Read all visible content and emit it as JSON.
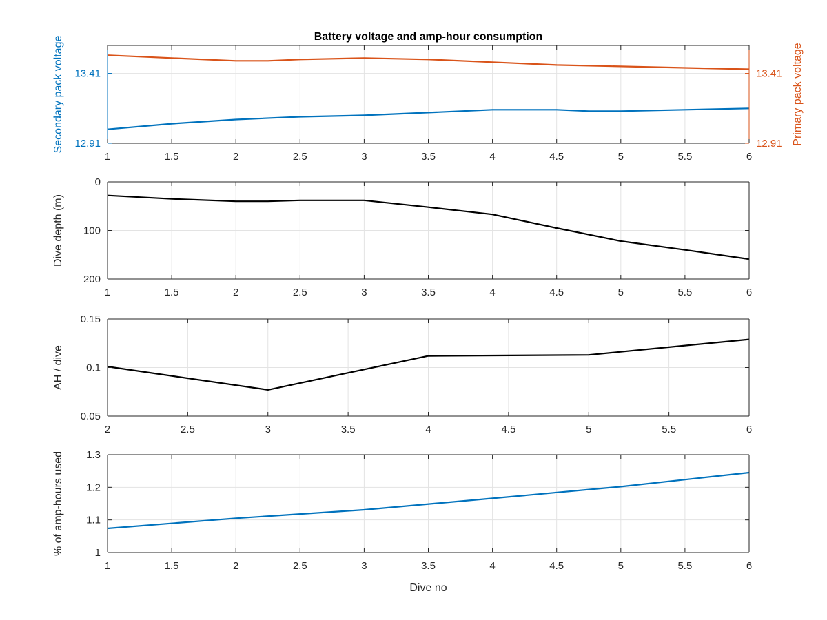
{
  "chart_data": [
    {
      "type": "line",
      "title": "Battery voltage and amp-hour consumption",
      "xlabel": "",
      "xlim": [
        1,
        6
      ],
      "xticks": [
        1,
        1.5,
        2,
        2.5,
        3,
        3.5,
        4,
        4.5,
        5,
        5.5,
        6
      ],
      "xtick_labels": [
        "1",
        "1.5",
        "2",
        "2.5",
        "3",
        "3.5",
        "4",
        "4.5",
        "5",
        "5.5",
        "6"
      ],
      "grid": true,
      "left_axis": {
        "label": "Secondary pack voltage",
        "color": "#0072bd",
        "ylim": [
          12.91,
          13.61
        ],
        "ticks": [
          12.91,
          13.41
        ],
        "tick_labels": [
          "12.91",
          "13.41"
        ]
      },
      "right_axis": {
        "label": "Primary pack voltage",
        "color": "#d95319",
        "ylim": [
          12.91,
          13.61
        ],
        "ticks": [
          12.91,
          13.41
        ],
        "tick_labels": [
          "12.91",
          "13.41"
        ]
      },
      "series": [
        {
          "axis": "left",
          "color": "#0072bd",
          "x": [
            1,
            1.5,
            2,
            2.5,
            3,
            3.5,
            4,
            4.5,
            4.75,
            5,
            5.5,
            6
          ],
          "y": [
            13.01,
            13.05,
            13.08,
            13.1,
            13.11,
            13.13,
            13.15,
            13.15,
            13.14,
            13.14,
            13.15,
            13.16
          ]
        },
        {
          "axis": "right",
          "color": "#d95319",
          "x": [
            1,
            1.5,
            2,
            2.25,
            2.5,
            3,
            3.5,
            4,
            4.5,
            5,
            5.5,
            6
          ],
          "y": [
            13.54,
            13.52,
            13.5,
            13.5,
            13.51,
            13.52,
            13.51,
            13.49,
            13.47,
            13.46,
            13.45,
            13.44
          ]
        }
      ]
    },
    {
      "type": "line",
      "xlabel": "",
      "ylabel": "Dive depth (m)",
      "xlim": [
        1,
        6
      ],
      "xticks": [
        1,
        1.5,
        2,
        2.5,
        3,
        3.5,
        4,
        4.5,
        5,
        5.5,
        6
      ],
      "xtick_labels": [
        "1",
        "1.5",
        "2",
        "2.5",
        "3",
        "3.5",
        "4",
        "4.5",
        "5",
        "5.5",
        "6"
      ],
      "ylim": [
        0,
        200
      ],
      "y_reversed": true,
      "yticks": [
        0,
        100,
        200
      ],
      "ytick_labels": [
        "0",
        "100",
        "200"
      ],
      "grid": true,
      "series": [
        {
          "color": "#000000",
          "x": [
            1,
            1.5,
            2,
            2.25,
            2.5,
            3,
            3.5,
            4,
            4.5,
            5,
            5.5,
            6
          ],
          "y": [
            28,
            35,
            40,
            40,
            38,
            38,
            52,
            67,
            95,
            122,
            140,
            159
          ]
        }
      ]
    },
    {
      "type": "line",
      "xlabel": "",
      "ylabel": "AH / dive",
      "xlim": [
        2,
        6
      ],
      "xticks": [
        2,
        2.5,
        3,
        3.5,
        4,
        4.5,
        5,
        5.5,
        6
      ],
      "xtick_labels": [
        "2",
        "2.5",
        "3",
        "3.5",
        "4",
        "4.5",
        "5",
        "5.5",
        "6"
      ],
      "ylim": [
        0.05,
        0.15
      ],
      "yticks": [
        0.05,
        0.1,
        0.15
      ],
      "ytick_labels": [
        "0.05",
        "0.1",
        "0.15"
      ],
      "grid": true,
      "series": [
        {
          "color": "#000000",
          "x": [
            2,
            3,
            4,
            5,
            6
          ],
          "y": [
            0.101,
            0.077,
            0.112,
            0.113,
            0.129
          ]
        }
      ]
    },
    {
      "type": "line",
      "xlabel": "Dive no",
      "ylabel": "% of amp-hours used",
      "xlim": [
        1,
        6
      ],
      "xticks": [
        1,
        1.5,
        2,
        2.5,
        3,
        3.5,
        4,
        4.5,
        5,
        5.5,
        6
      ],
      "xtick_labels": [
        "1",
        "1.5",
        "2",
        "2.5",
        "3",
        "3.5",
        "4",
        "4.5",
        "5",
        "5.5",
        "6"
      ],
      "ylim": [
        1,
        1.3
      ],
      "yticks": [
        1,
        1.1,
        1.2,
        1.3
      ],
      "ytick_labels": [
        "1",
        "1.1",
        "1.2",
        "1.3"
      ],
      "grid": true,
      "series": [
        {
          "color": "#0072bd",
          "x": [
            1,
            2,
            3,
            4,
            5,
            6
          ],
          "y": [
            1.074,
            1.105,
            1.131,
            1.166,
            1.202,
            1.245
          ]
        }
      ]
    }
  ]
}
